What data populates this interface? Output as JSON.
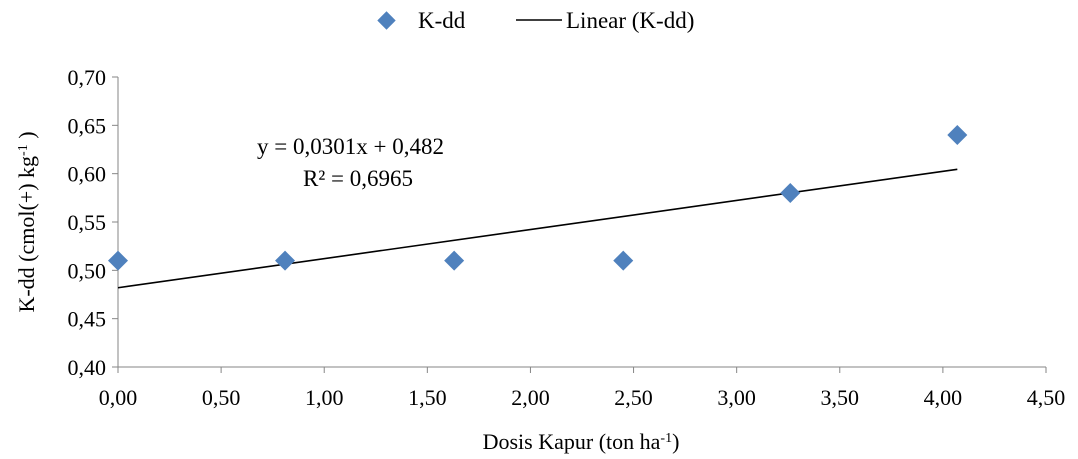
{
  "chart_data": {
    "type": "scatter",
    "x": [
      0,
      0.81,
      1.63,
      2.45,
      3.26,
      4.07
    ],
    "series": [
      {
        "name": "K-dd",
        "values": [
          0.51,
          0.51,
          0.51,
          0.51,
          0.58,
          0.64
        ]
      }
    ],
    "trendline": {
      "name": "Linear (K-dd)",
      "slope": 0.0301,
      "intercept": 0.482,
      "x_range": [
        0,
        4.07
      ]
    },
    "equation_label": "y = 0,0301x + 0,482",
    "r2_label": "R² = 0,6965",
    "xlabel": {
      "base": "Dosis Kapur  (ton ha",
      "sup": "-1",
      "tail": ")"
    },
    "ylabel": {
      "base": "K-dd  (cmol(+) kg",
      "sup": "-1",
      "tail": " )"
    },
    "xlim": [
      0,
      4.5
    ],
    "ylim": [
      0.4,
      0.7
    ],
    "xticks": [
      "0,00",
      "0,50",
      "1,00",
      "1,50",
      "2,00",
      "2,50",
      "3,00",
      "3,50",
      "4,00",
      "4,50"
    ],
    "yticks": [
      "0,40",
      "0,45",
      "0,50",
      "0,55",
      "0,60",
      "0,65",
      "0,70"
    ],
    "grid": false,
    "legend_position": "top-center",
    "marker_color": "#4F81BD",
    "line_color": "#000000"
  }
}
